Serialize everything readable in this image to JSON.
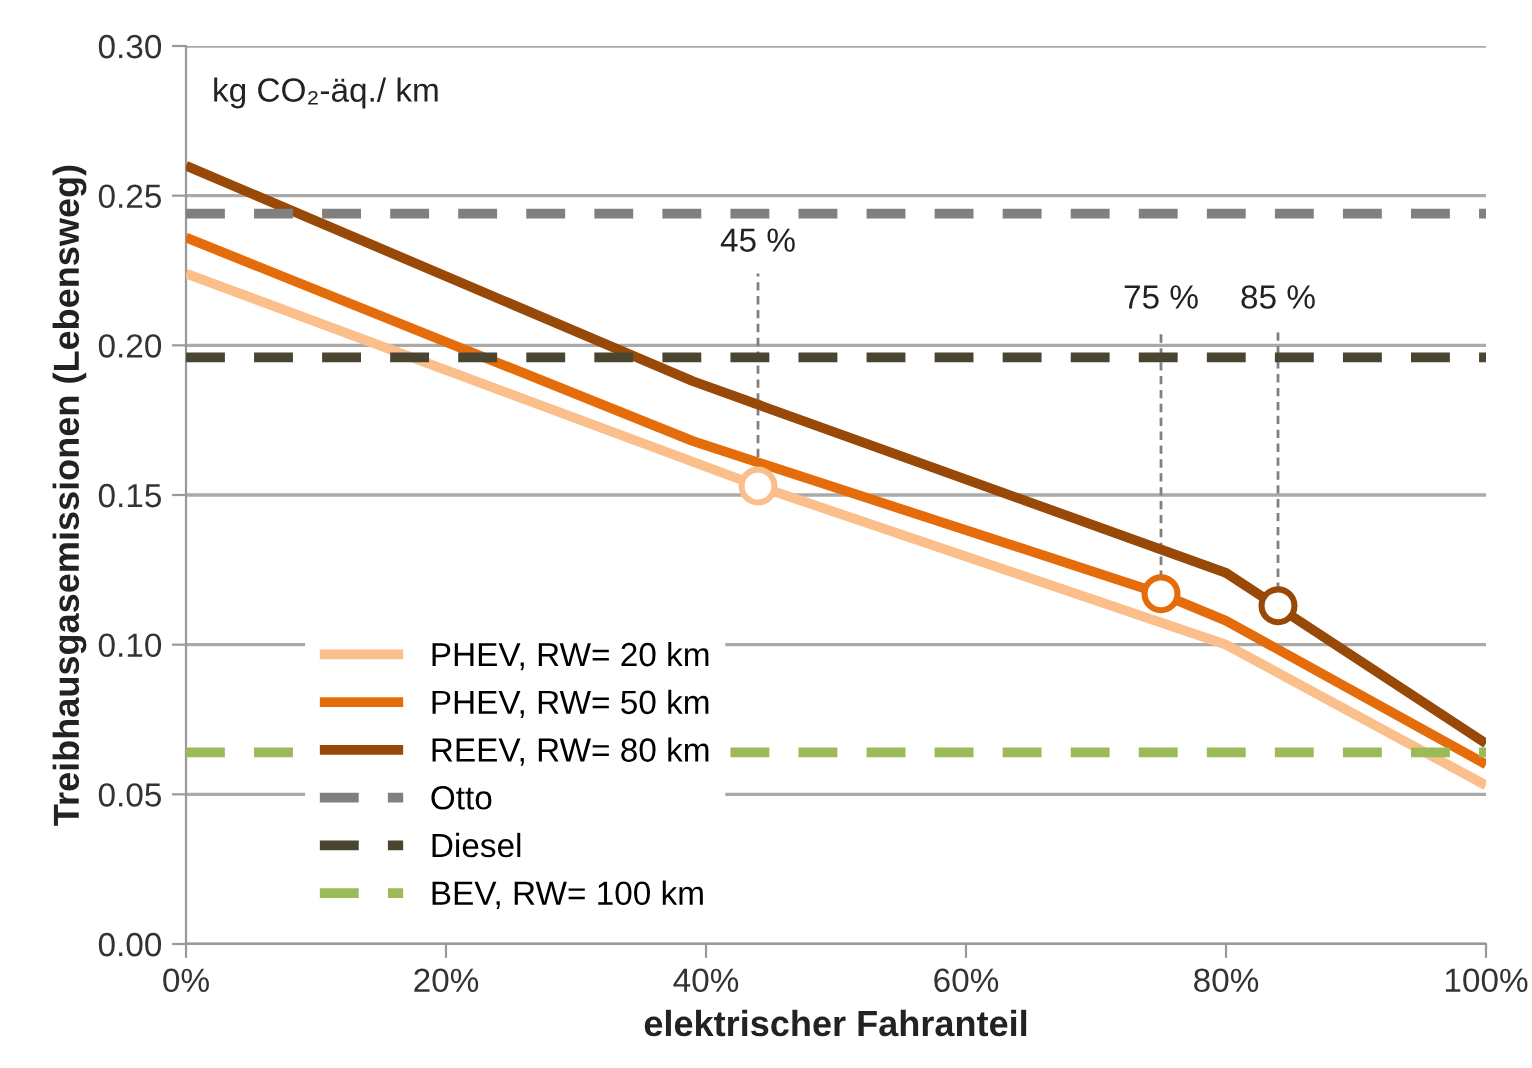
{
  "chart_data": {
    "type": "line",
    "xlabel": "elektrischer Fahranteil",
    "ylabel": "Treibhausgasemissionen (Lebensweg)",
    "annotations": [
      "kg CO₂-äq./ km",
      {
        "text": "45 %",
        "x": 44,
        "y": 0.153
      },
      {
        "text": "75 %",
        "x": 75,
        "y": 0.117
      },
      {
        "text": "85 %",
        "x": 84,
        "y": 0.113
      }
    ],
    "series": [
      {
        "name": "PHEV, RW= 20 km",
        "color": "#fbbf8c",
        "x": [
          0,
          44,
          80,
          100
        ],
        "values": [
          0.224,
          0.153,
          0.1,
          0.053
        ]
      },
      {
        "name": "PHEV, RW= 50 km",
        "color": "#e46c0a",
        "x": [
          0,
          39,
          75,
          80,
          100
        ],
        "values": [
          0.236,
          0.168,
          0.117,
          0.108,
          0.06
        ]
      },
      {
        "name": "REEV, RW= 80 km",
        "color": "#984807",
        "x": [
          0,
          39,
          80,
          100
        ],
        "values": [
          0.26,
          0.188,
          0.124,
          0.067
        ]
      },
      {
        "name": "Otto",
        "color": "#808080",
        "line_style": "dashed",
        "x": [
          0,
          100
        ],
        "values": [
          0.244,
          0.244
        ]
      },
      {
        "name": "Diesel",
        "color": "#4a4530",
        "line_style": "dashed",
        "x": [
          0,
          100
        ],
        "values": [
          0.196,
          0.196
        ]
      },
      {
        "name": "BEV, RW= 100 km",
        "color": "#9bbb59",
        "line_style": "dashed",
        "x": [
          0,
          100
        ],
        "values": [
          0.064,
          0.064
        ]
      },
      {
        "type": "scatter",
        "marker": "circle",
        "colors": [
          "#fbbf8c",
          "#e46c0a",
          "#984807"
        ],
        "x": [
          44,
          75,
          84
        ],
        "values": [
          0.153,
          0.117,
          0.113
        ]
      }
    ],
    "xlim": [
      0,
      100
    ],
    "xticks": [
      {
        "value": 0,
        "label": "0%"
      },
      {
        "value": 20,
        "label": "20%"
      },
      {
        "value": 40,
        "label": "40%"
      },
      {
        "value": 60,
        "label": "60%"
      },
      {
        "value": 80,
        "label": "80%"
      },
      {
        "value": 100,
        "label": "100%"
      }
    ],
    "ylim": [
      0,
      0.3
    ],
    "yticks": [
      {
        "value": 0,
        "label": "0.00"
      },
      {
        "value": 0.05,
        "label": "0.05"
      },
      {
        "value": 0.1,
        "label": "0.10"
      },
      {
        "value": 0.15,
        "label": "0.15"
      },
      {
        "value": 0.2,
        "label": "0.20"
      },
      {
        "value": 0.25,
        "label": "0.25"
      },
      {
        "value": 0.3,
        "label": "0.30"
      }
    ],
    "grid": "y",
    "legend": "bottom left"
  }
}
